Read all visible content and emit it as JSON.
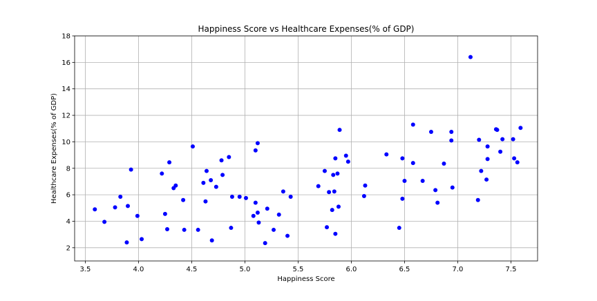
{
  "chart_data": {
    "type": "scatter",
    "title": "Happiness Score vs Healthcare Expenses(% of GDP)",
    "xlabel": "Happiness Score",
    "ylabel": "Healthcare Expenses(% of GDP)",
    "xlim": [
      3.4,
      7.75
    ],
    "ylim": [
      1,
      18
    ],
    "xticks": [
      3.5,
      4.0,
      4.5,
      5.0,
      5.5,
      6.0,
      6.5,
      7.0,
      7.5
    ],
    "xtick_labels": [
      "3.5",
      "4.0",
      "4.5",
      "5.0",
      "5.5",
      "6.0",
      "6.5",
      "7.0",
      "7.5"
    ],
    "yticks": [
      2,
      4,
      6,
      8,
      10,
      12,
      14,
      16,
      18
    ],
    "ytick_labels": [
      "2",
      "4",
      "6",
      "8",
      "10",
      "12",
      "14",
      "16",
      "18"
    ],
    "grid": true,
    "marker_color": "#0000ff",
    "series": [
      {
        "points": [
          [
            3.59,
            4.9
          ],
          [
            3.68,
            3.95
          ],
          [
            3.78,
            5.05
          ],
          [
            3.83,
            5.85
          ],
          [
            3.89,
            2.4
          ],
          [
            3.9,
            5.15
          ],
          [
            3.93,
            7.9
          ],
          [
            3.99,
            4.4
          ],
          [
            4.03,
            2.65
          ],
          [
            4.22,
            7.6
          ],
          [
            4.25,
            4.55
          ],
          [
            4.27,
            3.4
          ],
          [
            4.29,
            8.45
          ],
          [
            4.33,
            6.5
          ],
          [
            4.35,
            6.7
          ],
          [
            4.42,
            5.6
          ],
          [
            4.43,
            3.35
          ],
          [
            4.51,
            9.65
          ],
          [
            4.56,
            3.35
          ],
          [
            4.61,
            6.9
          ],
          [
            4.63,
            5.5
          ],
          [
            4.64,
            7.8
          ],
          [
            4.68,
            7.1
          ],
          [
            4.69,
            2.55
          ],
          [
            4.73,
            6.6
          ],
          [
            4.78,
            8.6
          ],
          [
            4.79,
            7.5
          ],
          [
            4.85,
            8.85
          ],
          [
            4.87,
            3.5
          ],
          [
            4.88,
            5.85
          ],
          [
            4.95,
            5.85
          ],
          [
            5.01,
            5.75
          ],
          [
            5.08,
            4.4
          ],
          [
            5.1,
            5.4
          ],
          [
            5.1,
            9.35
          ],
          [
            5.12,
            9.9
          ],
          [
            5.12,
            4.65
          ],
          [
            5.13,
            3.9
          ],
          [
            5.19,
            2.35
          ],
          [
            5.21,
            4.95
          ],
          [
            5.27,
            3.35
          ],
          [
            5.32,
            4.5
          ],
          [
            5.36,
            6.25
          ],
          [
            5.4,
            2.9
          ],
          [
            5.43,
            5.85
          ],
          [
            5.69,
            6.65
          ],
          [
            5.75,
            7.8
          ],
          [
            5.77,
            3.55
          ],
          [
            5.79,
            6.2
          ],
          [
            5.82,
            4.85
          ],
          [
            5.83,
            7.5
          ],
          [
            5.84,
            6.25
          ],
          [
            5.85,
            8.75
          ],
          [
            5.85,
            3.05
          ],
          [
            5.87,
            7.6
          ],
          [
            5.88,
            5.1
          ],
          [
            5.89,
            10.9
          ],
          [
            5.95,
            8.95
          ],
          [
            5.97,
            8.5
          ],
          [
            6.12,
            5.9
          ],
          [
            6.13,
            6.7
          ],
          [
            6.33,
            9.05
          ],
          [
            6.45,
            3.5
          ],
          [
            6.48,
            5.7
          ],
          [
            6.48,
            8.75
          ],
          [
            6.5,
            7.05
          ],
          [
            6.58,
            8.4
          ],
          [
            6.58,
            11.3
          ],
          [
            6.67,
            7.05
          ],
          [
            6.75,
            10.75
          ],
          [
            6.79,
            6.35
          ],
          [
            6.81,
            5.4
          ],
          [
            6.87,
            8.35
          ],
          [
            6.94,
            10.1
          ],
          [
            6.94,
            10.75
          ],
          [
            6.95,
            6.55
          ],
          [
            7.12,
            16.4
          ],
          [
            7.19,
            5.6
          ],
          [
            7.2,
            10.15
          ],
          [
            7.22,
            7.8
          ],
          [
            7.27,
            7.15
          ],
          [
            7.28,
            8.7
          ],
          [
            7.28,
            9.65
          ],
          [
            7.36,
            10.95
          ],
          [
            7.37,
            10.9
          ],
          [
            7.4,
            9.25
          ],
          [
            7.42,
            10.2
          ],
          [
            7.52,
            10.2
          ],
          [
            7.53,
            8.75
          ],
          [
            7.56,
            8.45
          ],
          [
            7.59,
            11.05
          ]
        ]
      }
    ]
  }
}
